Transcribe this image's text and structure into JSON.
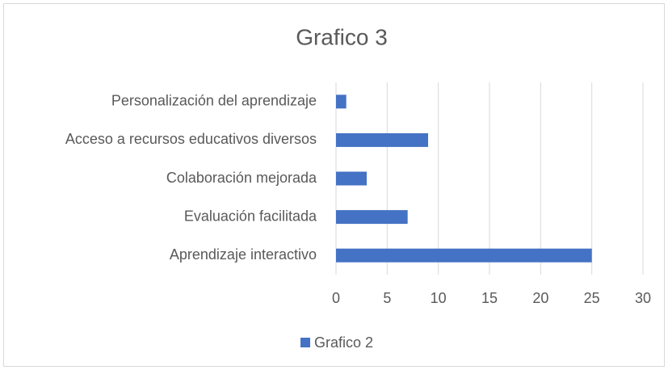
{
  "chart_data": {
    "type": "bar",
    "orientation": "horizontal",
    "title": "Grafico 3",
    "categories": [
      "Aprendizaje interactivo",
      "Evaluación facilitada",
      "Colaboración mejorada",
      "Acceso a recursos educativos diversos",
      "Personalización del aprendizaje"
    ],
    "series": [
      {
        "name": "Grafico 2",
        "color": "#4472c4",
        "values": [
          25,
          7,
          3,
          9,
          1
        ]
      }
    ],
    "xlim": [
      0,
      30
    ],
    "xticks": [
      0,
      5,
      10,
      15,
      20,
      25,
      30
    ],
    "grid": true,
    "legend": "bottom"
  }
}
